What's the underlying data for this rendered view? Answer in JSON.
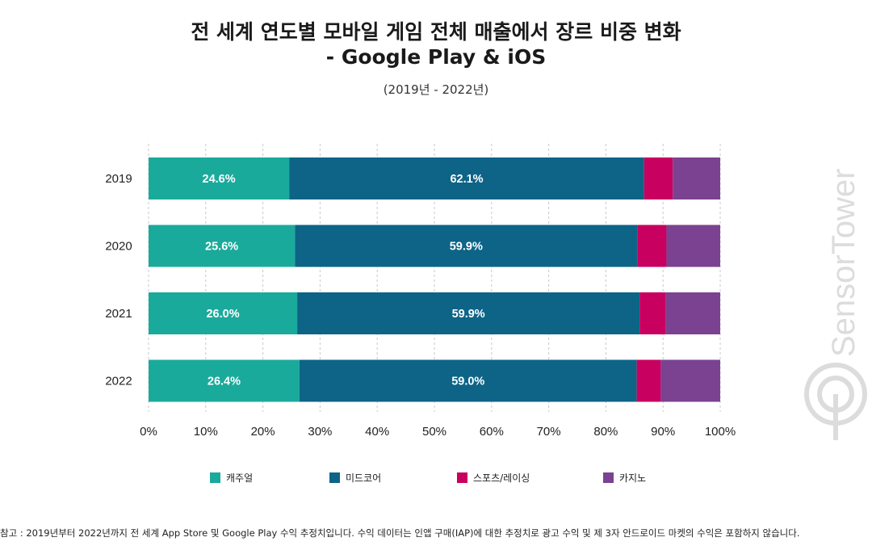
{
  "header": {
    "title_line1": "전 세계 연도별 모바일 게임 전체 매출에서 장르 비중 변화",
    "title_line2": "- Google Play & iOS",
    "subtitle": "(2019년 - 2022년)"
  },
  "chart_data": {
    "type": "bar",
    "orientation": "horizontal",
    "stacked": true,
    "title": "전 세계 연도별 모바일 게임 전체 매출에서 장르 비중 변화 - Google Play & iOS",
    "categories": [
      "2019",
      "2020",
      "2021",
      "2022"
    ],
    "series": [
      {
        "name": "캐주얼",
        "color": "#1aaa9b",
        "values": [
          24.6,
          25.6,
          26.0,
          26.4
        ],
        "labels": [
          "24.6%",
          "25.6%",
          "26.0%",
          "26.4%"
        ]
      },
      {
        "name": "미드코어",
        "color": "#0d6487",
        "values": [
          62.1,
          59.9,
          59.9,
          59.0
        ],
        "labels": [
          "62.1%",
          "59.9%",
          "59.9%",
          "59.0%"
        ]
      },
      {
        "name": "스포츠/레이싱",
        "color": "#c8005f",
        "values": [
          5.0,
          5.1,
          4.6,
          4.2
        ]
      },
      {
        "name": "카지노",
        "color": "#7a4290",
        "values": [
          8.3,
          9.4,
          9.5,
          10.4
        ]
      }
    ],
    "x_ticks": [
      "0%",
      "10%",
      "20%",
      "30%",
      "40%",
      "50%",
      "60%",
      "70%",
      "80%",
      "90%",
      "100%"
    ],
    "xlim": [
      0,
      100
    ],
    "grid": "vertical-dashed",
    "legend": "bottom"
  },
  "footnote": "참고 : 2019년부터 2022년까지 전 세계 App Store 및 Google Play 수익 추정치입니다. 수익 데이터는 인앱 구매(IAP)에 대한 추정치로 광고 수익 및 제 3자 안드로이드 마켓의 수익은 포함하지 않습니다.",
  "watermark": "SensorTower"
}
